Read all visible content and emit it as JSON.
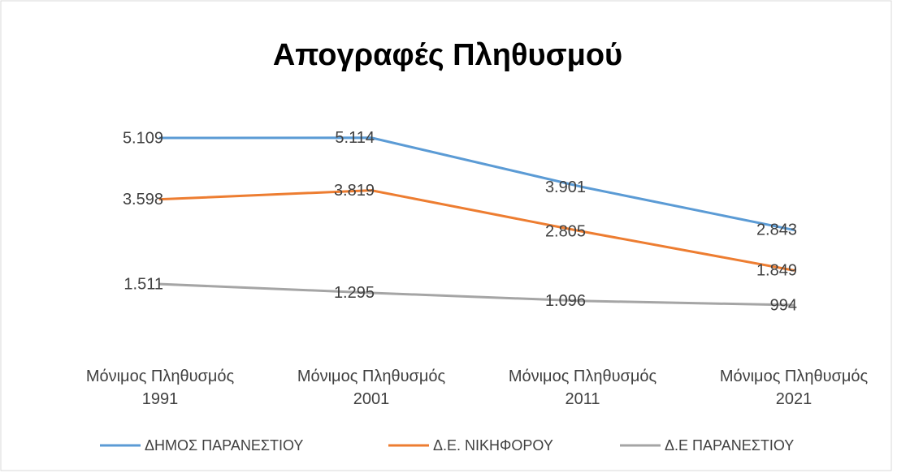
{
  "chart_data": {
    "type": "line",
    "title": "Απογραφές Πληθυσμού",
    "categories": [
      "Μόνιμος Πληθυσμός 1991",
      "Μόνιμος Πληθυσμός 2001",
      "Μόνιμος Πληθυσμός 2011",
      "Μόνιμος Πληθυσμός 2021"
    ],
    "series": [
      {
        "name": "ΔΗΜΟΣ ΠΑΡΑΝΕΣΤΙΟΥ",
        "color": "#5b9bd5",
        "values": [
          5109,
          5114,
          3901,
          2843
        ],
        "value_labels": [
          "5.109",
          "5.114",
          "3.901",
          "2.843"
        ]
      },
      {
        "name": "Δ.Ε. ΝΙΚΗΦΟΡΟΥ",
        "color": "#ed7d31",
        "values": [
          3598,
          3819,
          2805,
          1849
        ],
        "value_labels": [
          "3.598",
          "3.819",
          "2.805",
          "1.849"
        ]
      },
      {
        "name": "Δ.Ε ΠΑΡΑΝΕΣΤΙΟΥ",
        "color": "#a5a5a5",
        "values": [
          1511,
          1295,
          1096,
          994
        ],
        "value_labels": [
          "1.511",
          "1.295",
          "1.096",
          "994"
        ]
      }
    ],
    "ylim": [
      0,
      6000
    ],
    "legend": "bottom"
  }
}
